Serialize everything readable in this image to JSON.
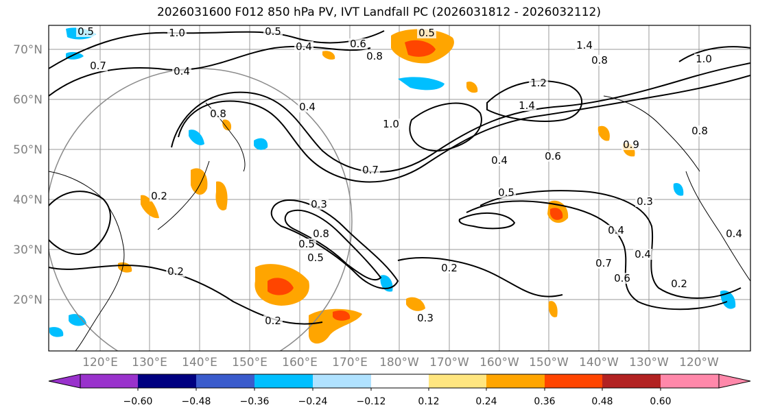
{
  "title": "2026031600 F012 850 hPa PV, IVT Landfall PC (2026031812 - 2026032112)",
  "map": {
    "lat_labels": [
      "70°N",
      "60°N",
      "50°N",
      "40°N",
      "30°N",
      "20°N"
    ],
    "lon_labels": [
      "120°E",
      "130°E",
      "140°E",
      "150°E",
      "160°E",
      "170°E",
      "180°W",
      "170°W",
      "160°W",
      "150°W",
      "140°W",
      "130°W",
      "120°W"
    ],
    "contour_labels": [
      "0.5",
      "1.0",
      "0.5",
      "0.4",
      "0.6",
      "0.8",
      "0.4",
      "1.4",
      "0.8",
      "1.0",
      "0.7",
      "0.4",
      "0.8",
      "0.5",
      "1.2",
      "1.4",
      "0.9",
      "0.8",
      "1.0",
      "0.7",
      "0.4",
      "0.5",
      "0.6",
      "0.3",
      "0.2",
      "0.5",
      "0.3",
      "0.8",
      "0.5",
      "0.4",
      "0.2",
      "0.2",
      "0.2",
      "0.3",
      "0.4",
      "0.7",
      "0.6",
      "0.2",
      "0.4"
    ],
    "grid": true
  },
  "colorbar": {
    "colors": [
      "#9932cc",
      "#000080",
      "#3a5bcc",
      "#00bfff",
      "#b0e2ff",
      "#ffffff",
      "#ffe680",
      "#ffa500",
      "#ff4500",
      "#b22222",
      "#ff88aa"
    ],
    "tick_labels": [
      "−0.60",
      "−0.48",
      "−0.36",
      "−0.24",
      "−0.12",
      "0.12",
      "0.24",
      "0.36",
      "0.48",
      "0.60"
    ]
  }
}
